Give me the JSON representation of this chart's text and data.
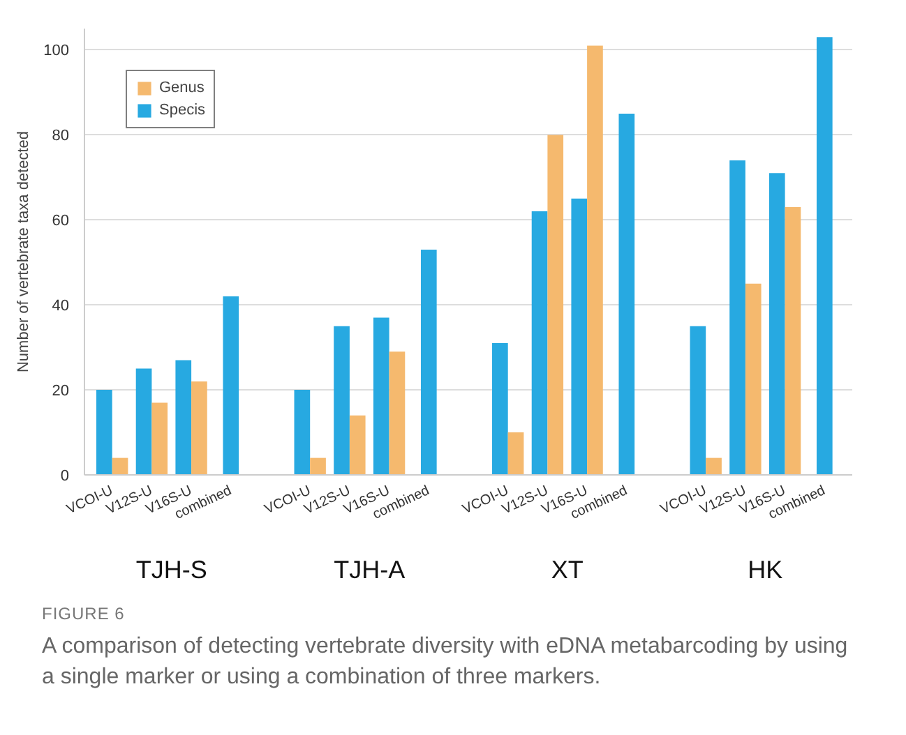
{
  "chart_data": {
    "type": "bar",
    "ylabel": "Number of vertebrate taxa detected",
    "categories": [
      "VCOI-U",
      "V12S-U",
      "V16S-U",
      "combined",
      null,
      "VCOI-U",
      "V12S-U",
      "V16S-U",
      "combined",
      null,
      "VCOI-U",
      "V12S-U",
      "V16S-U",
      "combined",
      null,
      "VCOI-U",
      "V12S-U",
      "V16S-U",
      "combined"
    ],
    "series": [
      {
        "name": "Specis",
        "color": "#27a9e1",
        "values": [
          20,
          25,
          27,
          42,
          null,
          20,
          35,
          37,
          53,
          null,
          31,
          62,
          65,
          85,
          null,
          35,
          74,
          71,
          103
        ]
      },
      {
        "name": "Genus",
        "color": "#f5b96e",
        "values": [
          4,
          17,
          22,
          null,
          null,
          4,
          14,
          29,
          null,
          null,
          10,
          80,
          101,
          null,
          null,
          4,
          45,
          63,
          null
        ]
      }
    ],
    "ylim": [
      0,
      105
    ],
    "yticks": [
      0,
      20,
      40,
      60,
      80,
      100
    ],
    "grid": "y",
    "legend": "top left",
    "annotations": [
      "TJH-S",
      "TJH-A",
      "XT",
      "HK",
      "FIGURE 6",
      "A comparison of detecting vertebrate diversity with eDNA metabarcoding by using a single marker or using a combination of three markers."
    ]
  }
}
